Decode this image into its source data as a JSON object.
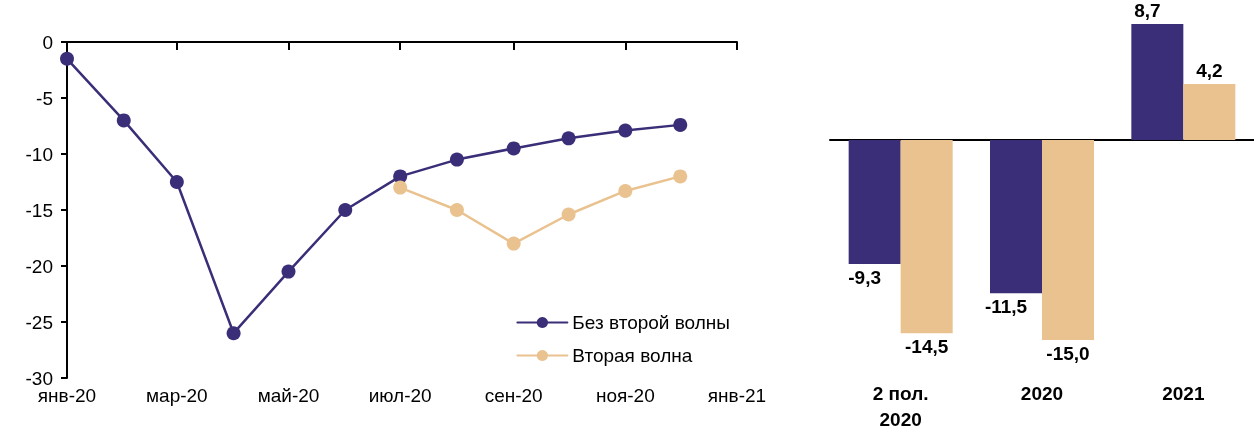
{
  "chart_data": [
    {
      "type": "line",
      "x": [
        "2020-01",
        "2020-02",
        "2020-03",
        "2020-04",
        "2020-05",
        "2020-06",
        "2020-07",
        "2020-08",
        "2020-09",
        "2020-10",
        "2020-11",
        "2020-12"
      ],
      "series": [
        {
          "name": "Без второй волны",
          "color": "#3b2e78",
          "values": [
            -1.5,
            -7,
            -12.5,
            -26,
            -20.5,
            -15,
            -12,
            -10.5,
            -9.5,
            -8.6,
            -7.9,
            -7.4
          ]
        },
        {
          "name": "Вторая волна",
          "color": "#e9c28f",
          "x": [
            "2020-07",
            "2020-08",
            "2020-09",
            "2020-10",
            "2020-11",
            "2020-12"
          ],
          "values": [
            -13,
            -15,
            -18,
            -15.4,
            -13.3,
            -12
          ]
        }
      ],
      "xlim": [
        "2020-01",
        "2021-01"
      ],
      "xticks": [
        {
          "value": "2020-01",
          "label": "янв-20"
        },
        {
          "value": "2020-03",
          "label": "мар-20"
        },
        {
          "value": "2020-05",
          "label": "май-20"
        },
        {
          "value": "2020-07",
          "label": "июл-20"
        },
        {
          "value": "2020-09",
          "label": "сен-20"
        },
        {
          "value": "2020-11",
          "label": "ноя-20"
        },
        {
          "value": "2021-01",
          "label": "янв-21"
        }
      ],
      "ylim": [
        -30,
        0
      ],
      "yticks": [
        0,
        -5,
        -10,
        -15,
        -20,
        -25,
        -30
      ],
      "grid": false,
      "legend": "bottom right",
      "marker": "circle",
      "line_style": "solid"
    },
    {
      "type": "bar",
      "categories": [
        "2 пол.\n2020",
        "2020",
        "2021"
      ],
      "series": [
        {
          "color": "#3b2e78",
          "values": [
            -9.3,
            -11.5,
            8.7
          ],
          "value_labels": [
            "-9,3",
            "-11,5",
            "8,7"
          ]
        },
        {
          "color": "#e9c28f",
          "values": [
            -14.5,
            -15.0,
            4.2
          ],
          "value_labels": [
            "-14,5",
            "-15,0",
            "4,2"
          ]
        }
      ]
    }
  ]
}
